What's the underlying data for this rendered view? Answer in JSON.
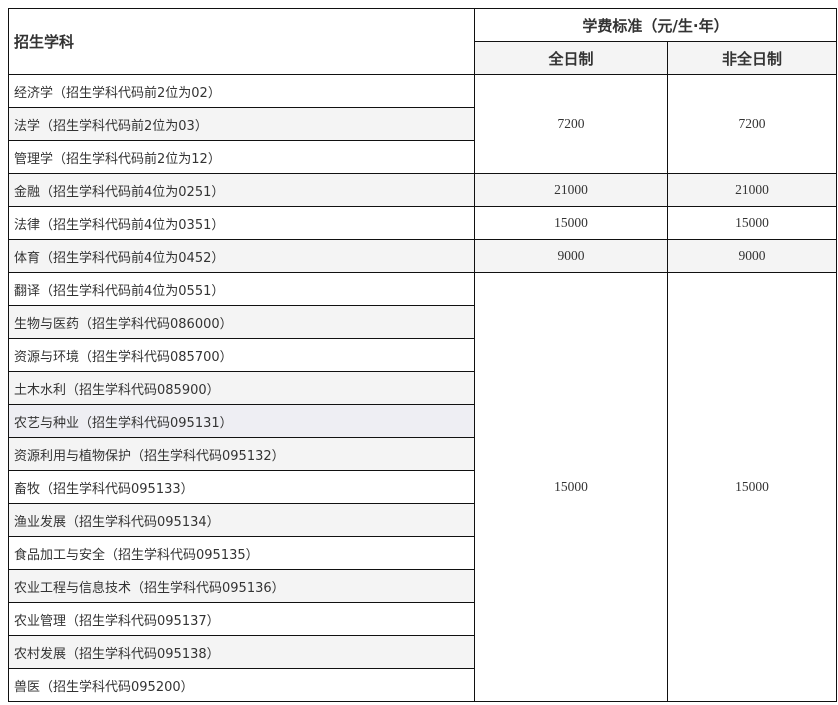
{
  "header": {
    "subject_col": "招生学科",
    "fee_group": "学费标准（元/生·年）",
    "full_time": "全日制",
    "part_time": "非全日制"
  },
  "rows": [
    "经济学（招生学科代码前2位为02）",
    "法学（招生学科代码前2位为03）",
    "管理学（招生学科代码前2位为12）",
    "金融（招生学科代码前4位为0251）",
    "法律（招生学科代码前4位为0351）",
    "体育（招生学科代码前4位为0452）",
    "翻译（招生学科代码前4位为0551）",
    "生物与医药（招生学科代码086000）",
    "资源与环境（招生学科代码085700）",
    "土木水利（招生学科代码085900）",
    "农艺与种业（招生学科代码095131）",
    "资源利用与植物保护（招生学科代码095132）",
    "畜牧（招生学科代码095133）",
    "渔业发展（招生学科代码095134）",
    "食品加工与安全（招生学科代码095135）",
    "农业工程与信息技术（招生学科代码095136）",
    "农业管理（招生学科代码095137）",
    "农村发展（招生学科代码095138）",
    "兽医（招生学科代码095200）"
  ],
  "fees": [
    {
      "full_time": "7200",
      "part_time": "7200"
    },
    {
      "full_time": "21000",
      "part_time": "21000"
    },
    {
      "full_time": "15000",
      "part_time": "15000"
    },
    {
      "full_time": "9000",
      "part_time": "9000"
    },
    {
      "full_time": "15000",
      "part_time": "15000"
    }
  ]
}
